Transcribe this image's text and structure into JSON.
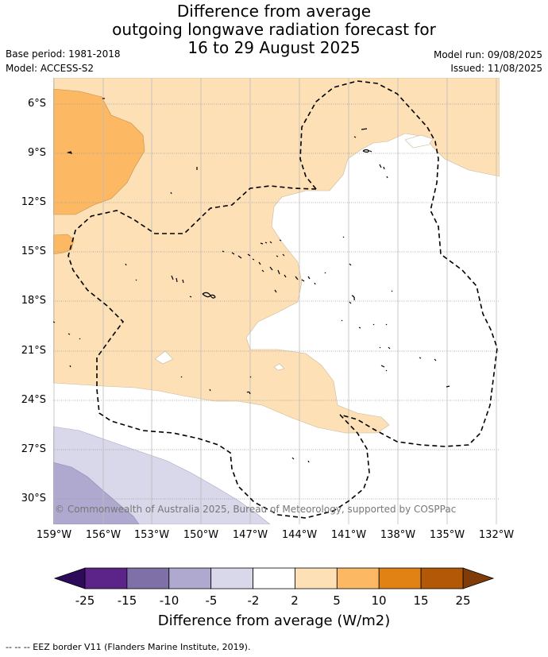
{
  "title": {
    "line1": "Difference from average",
    "line2": "outgoing longwave radiation forecast for",
    "line3": "16 to 29 August 2025"
  },
  "meta": {
    "base_period": "Base period: 1981-2018",
    "model": "Model: ACCESS-S2",
    "model_run": "Model run: 09/08/2025",
    "issued": "Issued: 11/08/2025"
  },
  "map": {
    "lat_ticks": [
      "6°S",
      "9°S",
      "12°S",
      "15°S",
      "18°S",
      "21°S",
      "24°S",
      "27°S",
      "30°S"
    ],
    "lon_ticks": [
      "159°W",
      "156°W",
      "153°W",
      "150°W",
      "147°W",
      "144°W",
      "141°W",
      "138°W",
      "135°W",
      "132°W"
    ],
    "copyright": "© Commonwealth of Australia 2025, Bureau of Meteorology, supported by COSPPac",
    "gridlines": true
  },
  "colorbar": {
    "title": "Difference from average (W/m2)",
    "labels": [
      "-25",
      "-15",
      "-10",
      "-5",
      "-2",
      "2",
      "5",
      "10",
      "15",
      "25"
    ],
    "colors": {
      "below_min": "#2d0a5a",
      "bins": [
        "#5c2389",
        "#8070a8",
        "#b0a9cf",
        "#d8d8ea",
        "#ffffff",
        "#fde0b6",
        "#fdb863",
        "#e08214",
        "#b35806"
      ],
      "above_max": "#7f3b08"
    }
  },
  "footnote": "-- -- -- EEZ border V11 (Flanders Marine Institute, 2019)."
}
